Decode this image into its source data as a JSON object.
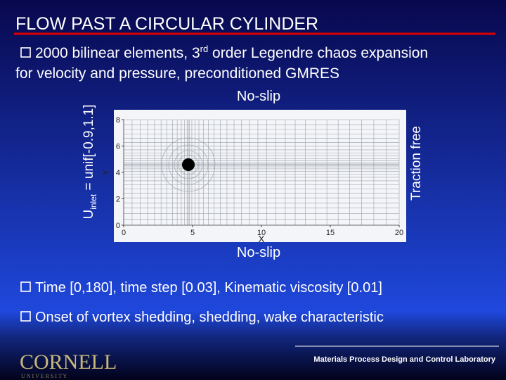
{
  "title": "FLOW PAST A CIRCULAR CYLINDER",
  "bullets": [
    {
      "parts": [
        "2000 bilinear elements, 3",
        "rd",
        " order Legendre chaos expansion",
        "for velocity and pressure, preconditioned GMRES"
      ]
    },
    {
      "parts": [
        "Time [0,180], time step [0.03], Kinematic viscosity [0.01]"
      ]
    },
    {
      "parts": [
        "Onset of vortex shedding, shedding, wake characteristic"
      ]
    }
  ],
  "boundary_labels": {
    "top": "No-slip",
    "bottom": "No-slip",
    "right": "Traction free",
    "inlet": [
      "U",
      "inlet",
      " = unif[-0.9,1.1]"
    ]
  },
  "chart_data": {
    "type": "mesh",
    "xlabel": "X",
    "ylabel": "Y",
    "xlim": [
      0,
      20
    ],
    "ylim": [
      0,
      8
    ],
    "xticks": [
      0,
      5,
      10,
      15,
      20
    ],
    "yticks": [
      0,
      2,
      4,
      6,
      8
    ]
  },
  "footer": {
    "logo": "CORNELL",
    "logo_sub": "U N I V E R S I T Y",
    "lab": "Materials Process Design and Control Laboratory"
  }
}
